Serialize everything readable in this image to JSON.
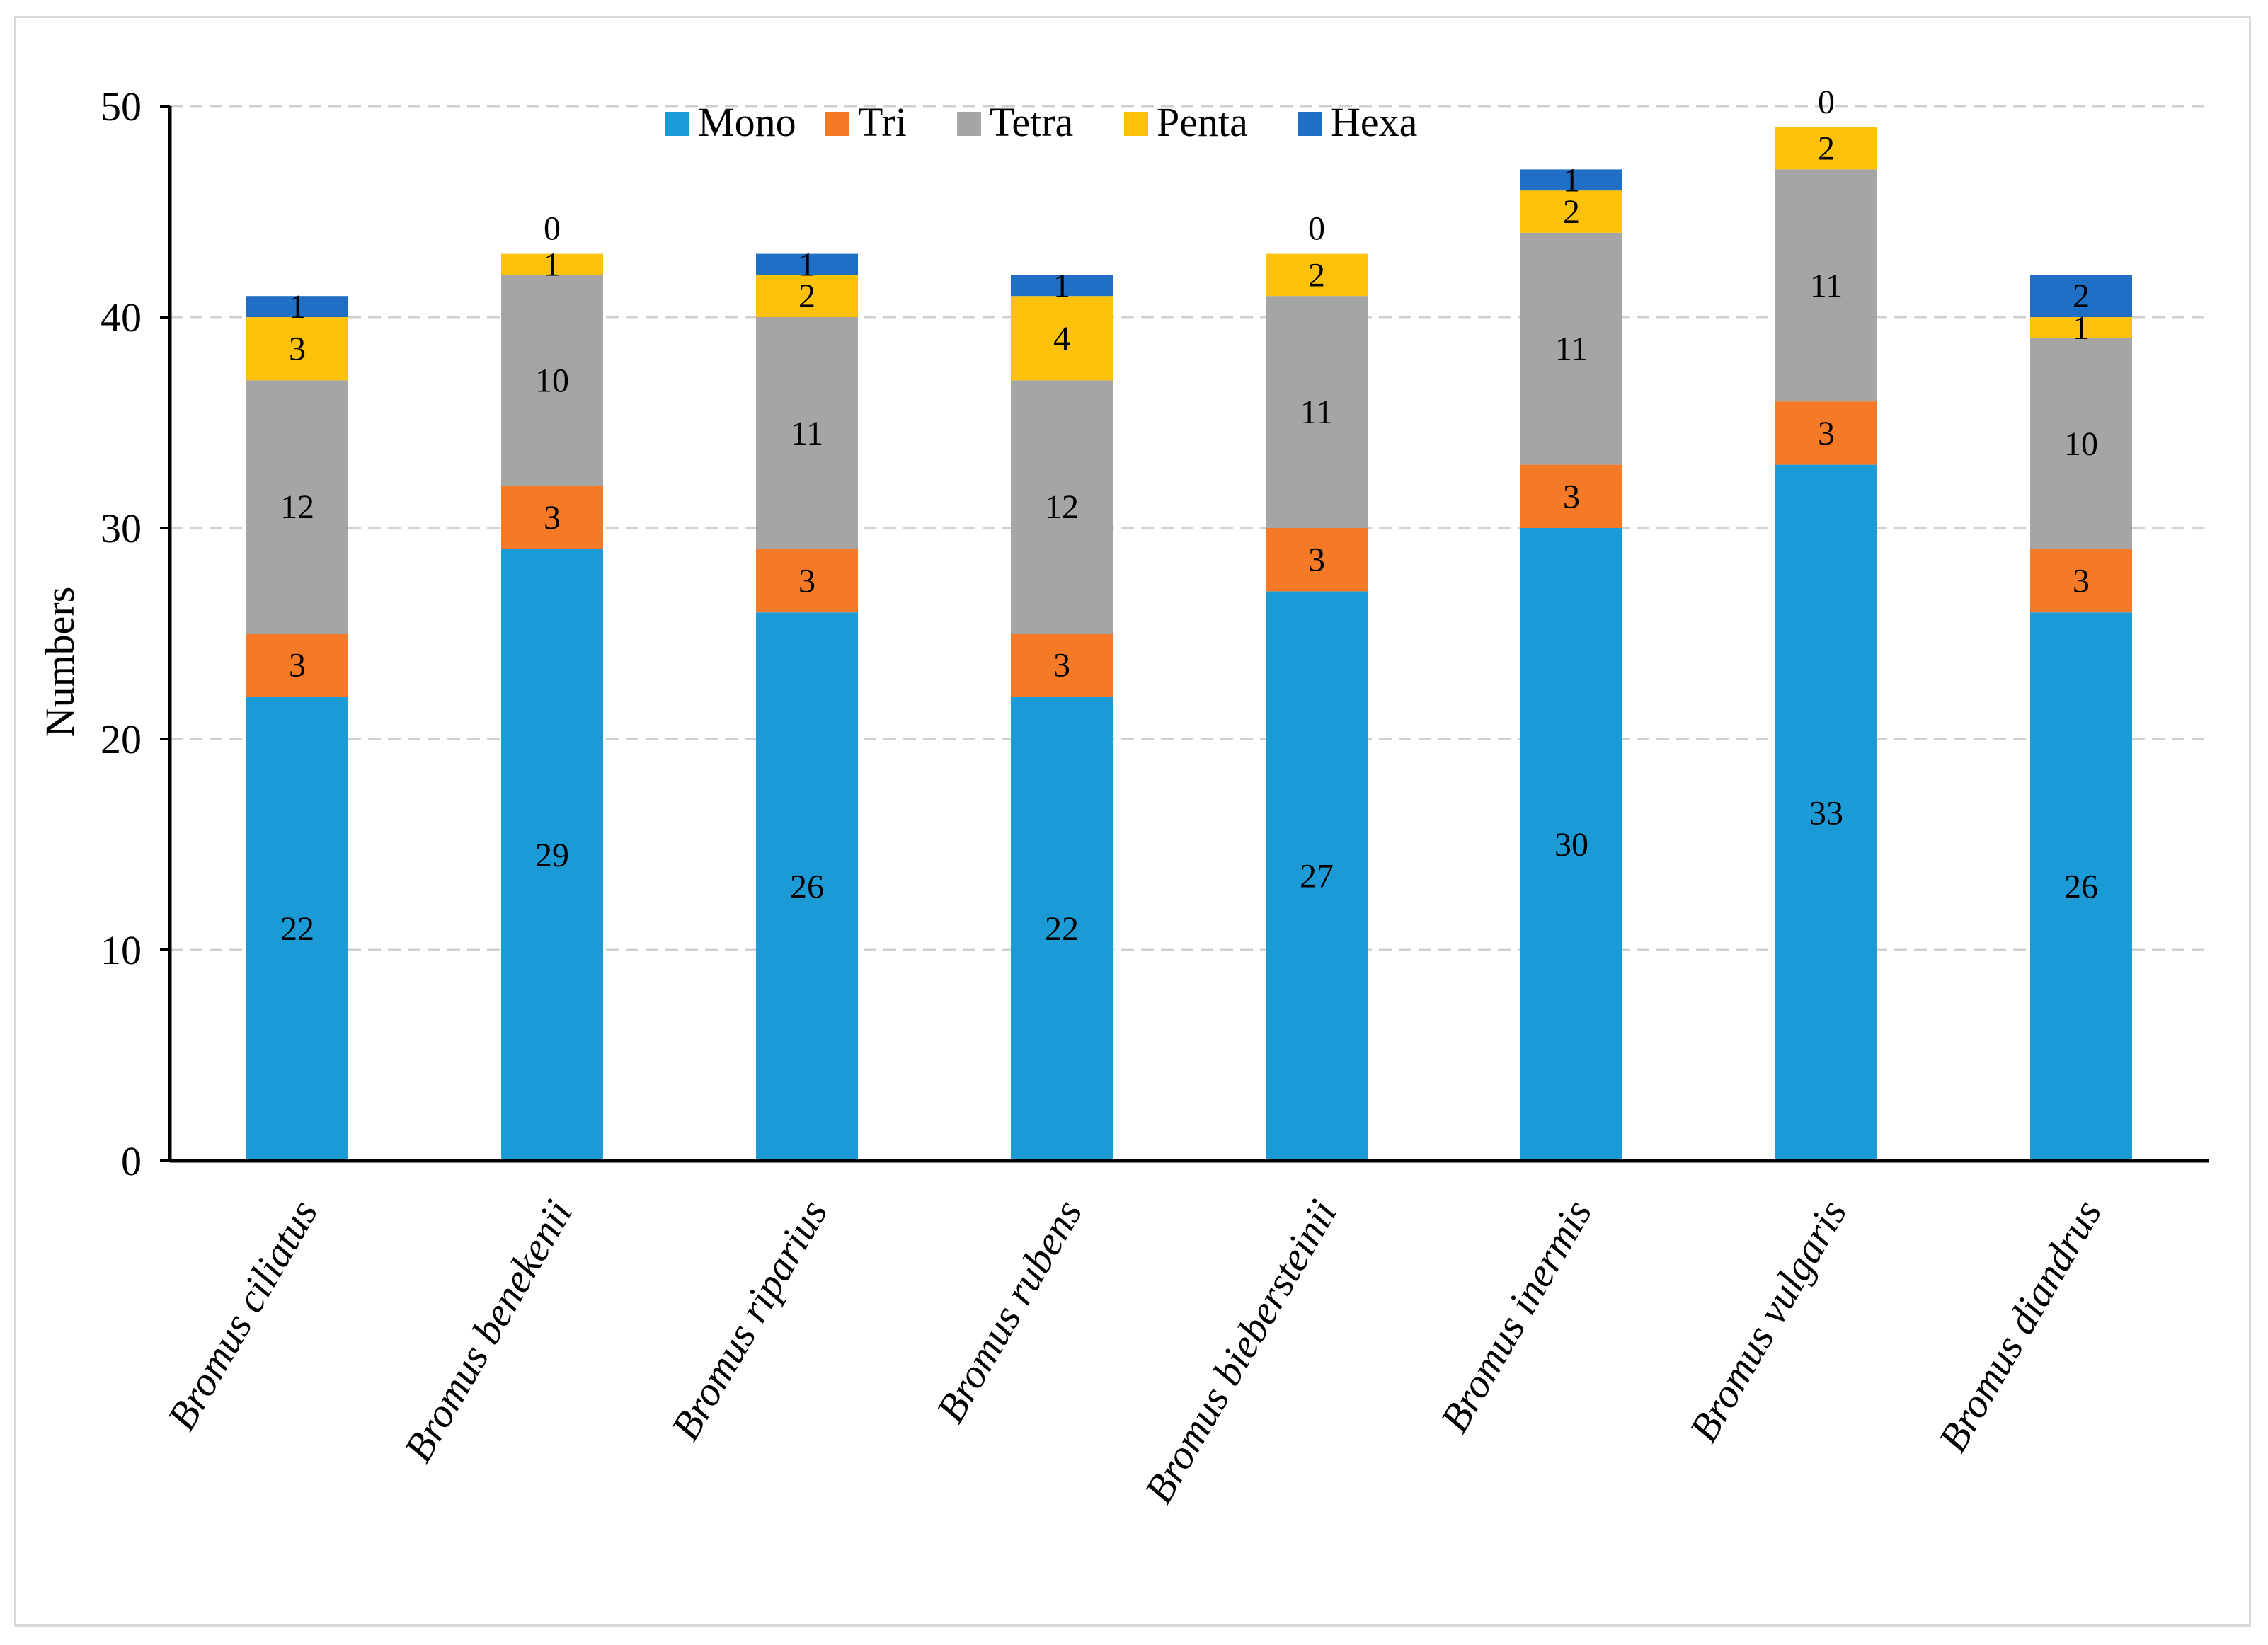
{
  "chart_data": {
    "type": "bar",
    "stacked": true,
    "title": "",
    "xlabel": "",
    "ylabel": "Numbers",
    "ylim": [
      0,
      50
    ],
    "yticks": [
      0,
      10,
      20,
      30,
      40,
      50
    ],
    "grid": true,
    "legend_position": "top",
    "categories": [
      "Bromus ciliatus",
      "Bromus benekenii",
      "Bromus riparius",
      "Bromus rubens",
      "Bromus biebersteinii",
      "Bromus inermis",
      "Bromus vulgaris",
      "Bromus diandrus"
    ],
    "series": [
      {
        "name": "Mono",
        "color": "#1b9ad6",
        "values": [
          22,
          29,
          26,
          22,
          27,
          30,
          33,
          26
        ]
      },
      {
        "name": "Tri",
        "color": "#f47a28",
        "values": [
          3,
          3,
          3,
          3,
          3,
          3,
          3,
          3
        ]
      },
      {
        "name": "Tetra",
        "color": "#a5a5a5",
        "values": [
          12,
          10,
          11,
          12,
          11,
          11,
          11,
          10
        ]
      },
      {
        "name": "Penta",
        "color": "#fcc20b",
        "values": [
          3,
          1,
          2,
          4,
          2,
          2,
          2,
          1
        ]
      },
      {
        "name": "Hexa",
        "color": "#1f6fc5",
        "values": [
          1,
          0,
          1,
          1,
          0,
          1,
          0,
          2
        ]
      }
    ]
  }
}
